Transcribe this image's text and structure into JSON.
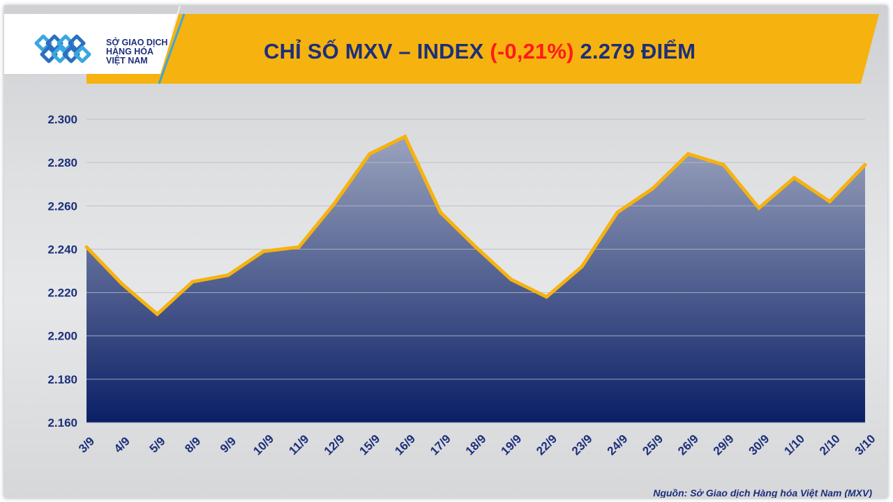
{
  "header": {
    "title_prefix": "CHỈ SỐ MXV – INDEX ",
    "title_change": "(-0,21%)",
    "title_suffix": " 2.279 ĐIỂM",
    "logo_line1": "SỞ GIAO DỊCH",
    "logo_line2": "HÀNG HÓA",
    "logo_line3": "VIỆT NAM",
    "accent_color": "#f6b20f",
    "brand_color": "#1c2f7a",
    "negative_color": "#ff1a1a"
  },
  "source": "Nguồn: Sở Giao dịch Hàng hóa Việt Nam (MXV)",
  "chart_data": {
    "type": "area",
    "title": "CHỈ SỐ MXV – INDEX (-0,21%) 2.279 ĐIỂM",
    "xlabel": "",
    "ylabel": "",
    "ylim": [
      2160,
      2300
    ],
    "yticks": [
      2160,
      2180,
      2200,
      2220,
      2240,
      2260,
      2280,
      2300
    ],
    "ytick_labels": [
      "2.160",
      "2.180",
      "2.200",
      "2.220",
      "2.240",
      "2.260",
      "2.280",
      "2.300"
    ],
    "grid": true,
    "line_color": "#f6b20f",
    "fill_top_color": "#9aa3bd",
    "fill_bottom_color": "#0b1f66",
    "categories": [
      "3/9",
      "4/9",
      "5/9",
      "8/9",
      "9/9",
      "10/9",
      "11/9",
      "12/9",
      "15/9",
      "16/9",
      "17/9",
      "18/9",
      "19/9",
      "22/9",
      "23/9",
      "24/9",
      "25/9",
      "26/9",
      "29/9",
      "30/9",
      "1/10",
      "2/10",
      "3/10"
    ],
    "values": [
      2241,
      2224,
      2210,
      2225,
      2228,
      2239,
      2241,
      2261,
      2284,
      2292,
      2257,
      2241,
      2226,
      2218,
      2232,
      2257,
      2268,
      2284,
      2279,
      2259,
      2273,
      2262,
      2279
    ]
  }
}
